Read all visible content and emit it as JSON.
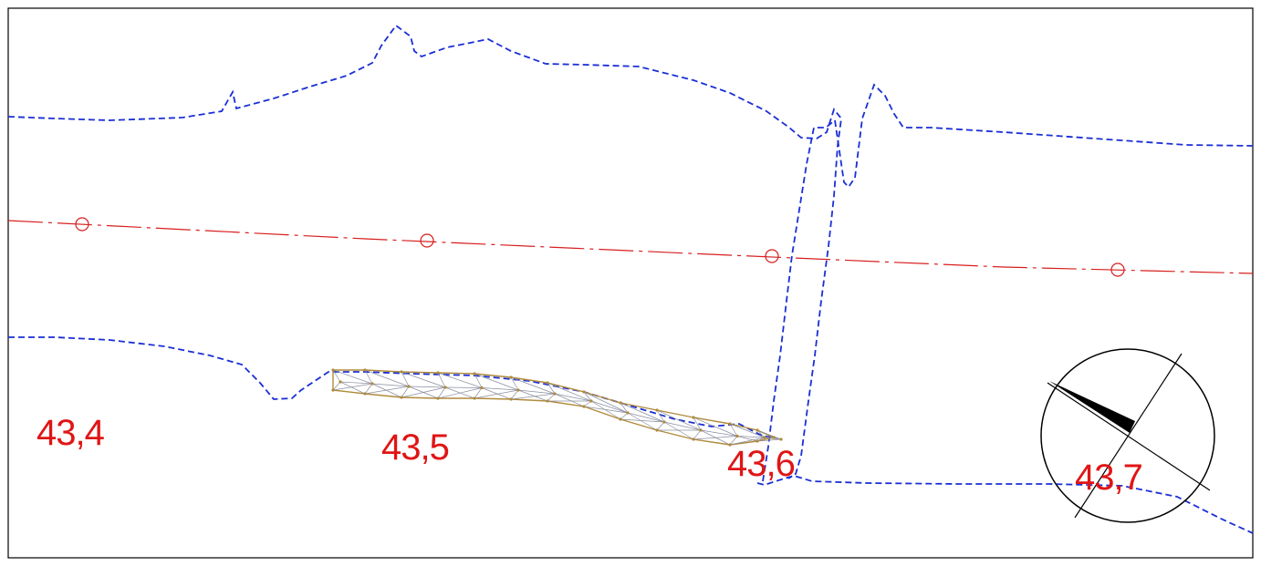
{
  "map": {
    "colors": {
      "boundary": "#1a2fd6",
      "axis": "#d81e1e",
      "label": "#e01515",
      "mesh_edge": "#b08a3a",
      "mesh_inner": "#8a8fa0",
      "compass": "#000000"
    },
    "chainage_labels": [
      {
        "text": "43,4"
      },
      {
        "text": "43,5"
      },
      {
        "text": "43,6"
      },
      {
        "text": "43,7"
      }
    ],
    "axis_markers": [
      "circle-marker",
      "circle-marker",
      "circle-marker",
      "circle-marker"
    ],
    "compass": {
      "icon": "north-arrow-icon"
    }
  }
}
